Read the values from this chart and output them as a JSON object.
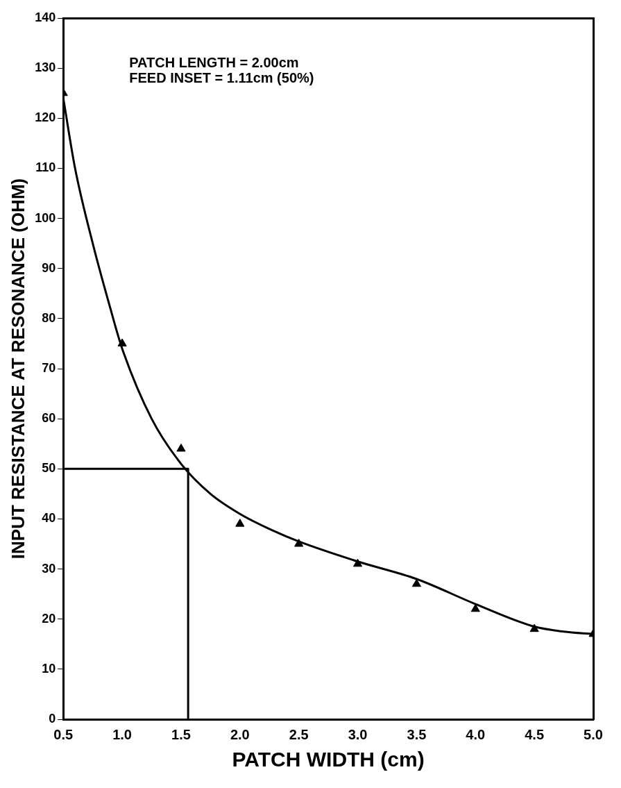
{
  "chart_data": {
    "type": "scatter",
    "xlabel": "PATCH WIDTH (cm)",
    "ylabel": "INPUT RESISTANCE AT RESONANCE (OHM)",
    "annotations": [
      "PATCH LENGTH = 2.00cm",
      "FEED INSET = 1.11cm (50%)"
    ],
    "series": [
      {
        "type": "scatter",
        "color": "#000000",
        "marker": "triangle",
        "x": [
          0.5,
          1.0,
          1.5,
          2.0,
          2.5,
          3.0,
          3.5,
          4.0,
          4.5,
          5.0
        ],
        "values": [
          125,
          75,
          54,
          39,
          35,
          31,
          27,
          22,
          18,
          17
        ]
      },
      {
        "type": "line",
        "color": "#000000",
        "marker": "none",
        "line_style": "solid",
        "x": [
          0.5,
          0.6,
          0.75,
          0.9,
          1.0,
          1.25,
          1.5,
          1.75,
          2.0,
          2.25,
          2.5,
          3.0,
          3.5,
          4.0,
          4.5,
          4.75,
          5.0
        ],
        "values": [
          124,
          110,
          95,
          82,
          74,
          60,
          51,
          45,
          41,
          38,
          35.5,
          31.5,
          28,
          23,
          18.5,
          17.5,
          17
        ]
      },
      {
        "type": "line",
        "color": "#000000",
        "marker": "none",
        "line_style": "solid",
        "x": [
          0.5,
          1.56,
          1.56
        ],
        "values": [
          50,
          50,
          0
        ]
      }
    ],
    "xlim": [
      0.5,
      5.0
    ],
    "xticks": [
      0.5,
      {
        "value": 1,
        "label": "1.0"
      },
      1.5,
      {
        "value": 2,
        "label": "2.0"
      },
      2.5,
      {
        "value": 3,
        "label": "3.0"
      },
      3.5,
      {
        "value": 4,
        "label": "4.0"
      },
      4.5,
      {
        "value": 5,
        "label": "5.0"
      }
    ],
    "ylim": [
      0,
      140
    ],
    "yticks": [
      0,
      10,
      20,
      30,
      40,
      50,
      60,
      70,
      80,
      90,
      100,
      110,
      120,
      130,
      140
    ],
    "grid": false,
    "legend": false
  }
}
